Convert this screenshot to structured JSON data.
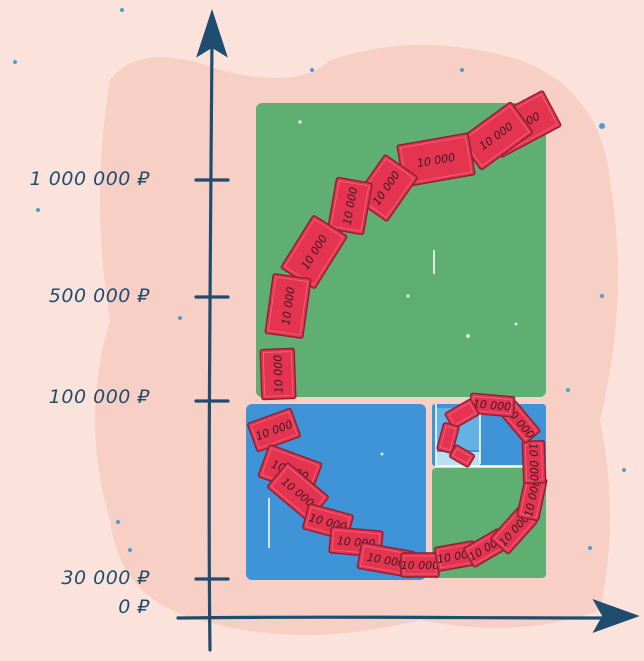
{
  "illustration": {
    "y_axis_labels": [
      {
        "text": "1 000 000 ₽"
      },
      {
        "text": "500 000 ₽"
      },
      {
        "text": "100 000 ₽"
      },
      {
        "text": "30 000 ₽"
      },
      {
        "text": "0 ₽"
      }
    ],
    "bill_label": "10 000",
    "colors": {
      "background": "#fbe3db",
      "glow": "#f7cfc4",
      "axis": "#1f4d70",
      "green_block": "#5faf73",
      "blue_block": "#3e94d6",
      "light_blue_block": "#62b2e6",
      "bill_fill": "#e4344f",
      "bill_outline": "#8f1f33"
    }
  }
}
